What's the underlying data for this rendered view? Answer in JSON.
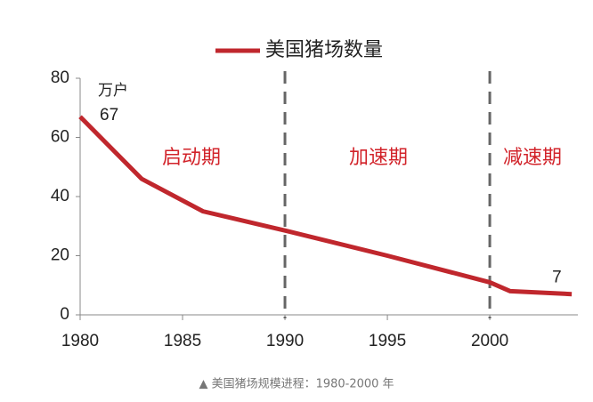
{
  "chart_data": {
    "type": "line",
    "legend_label": "美国猪场数量",
    "unit": "万户",
    "x": [
      1980,
      1983,
      1986,
      1990,
      1995,
      2000,
      2001,
      2004
    ],
    "series": [
      {
        "name": "美国猪场数量",
        "color": "#c0272d",
        "values": [
          67,
          46,
          35,
          28.5,
          20,
          11,
          8,
          7
        ]
      }
    ],
    "xlim": [
      1980,
      2004.3
    ],
    "ylim": [
      0,
      80
    ],
    "xticks": [
      1980,
      1985,
      1990,
      1995,
      2000
    ],
    "yticks": [
      0,
      20,
      40,
      60,
      80
    ],
    "vlines": [
      1990,
      2000
    ],
    "annotations": [
      "启动期",
      "加速期",
      "减速期"
    ],
    "caption": "▲ 美国猪场规模进程：1980-2000 年"
  }
}
